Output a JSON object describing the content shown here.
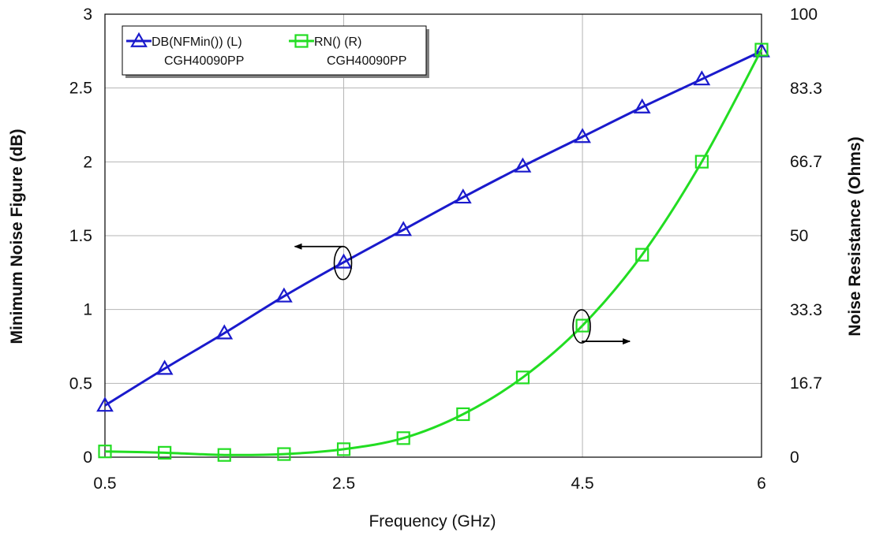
{
  "chart_data": {
    "type": "line",
    "x_label": "Frequency (GHz)",
    "y_left_label": "Minimum Noise Figure (dB)",
    "y_right_label": "Noise Resistance (Ohms)",
    "x_range": [
      0.5,
      6
    ],
    "y_left_range": [
      0,
      3
    ],
    "y_right_range": [
      0,
      100
    ],
    "x_ticks": [
      0.5,
      2.5,
      4.5,
      6
    ],
    "x_tick_labels": [
      "0.5",
      "2.5",
      "4.5",
      "6"
    ],
    "y_left_ticks": [
      0,
      0.5,
      1,
      1.5,
      2,
      2.5,
      3
    ],
    "y_left_tick_labels": [
      "0",
      "0.5",
      "1",
      "1.5",
      "2",
      "2.5",
      "3"
    ],
    "y_right_ticks": [
      0,
      16.7,
      33.3,
      50,
      66.7,
      83.3,
      100
    ],
    "y_right_tick_labels": [
      "0",
      "16.7",
      "33.3",
      "50",
      "66.7",
      "83.3",
      "100"
    ],
    "grid": true,
    "legend_position": "top-left",
    "series": [
      {
        "name": "DB(NFMin()) (L)",
        "subname": "CGH40090PP",
        "axis": "left",
        "marker": "triangle",
        "color": "#1a1acc",
        "x": [
          0.5,
          1.0,
          1.5,
          2.0,
          2.5,
          3.0,
          3.5,
          4.0,
          4.5,
          5.0,
          5.5,
          6.0
        ],
        "y": [
          0.35,
          0.6,
          0.84,
          1.09,
          1.32,
          1.54,
          1.76,
          1.97,
          2.17,
          2.37,
          2.56,
          2.75
        ]
      },
      {
        "name": "RN() (R)",
        "subname": "CGH40090PP",
        "axis": "right",
        "marker": "square",
        "color": "#22dd22",
        "x": [
          0.5,
          1.0,
          1.5,
          2.0,
          2.5,
          3.0,
          3.5,
          4.0,
          4.5,
          5.0,
          5.5,
          6.0
        ],
        "y": [
          1.3,
          1.0,
          0.5,
          0.7,
          1.8,
          4.3,
          9.7,
          18.0,
          29.7,
          45.7,
          66.7,
          92.0
        ]
      }
    ],
    "annotations": [
      {
        "target_series": 0,
        "x": 2.5,
        "y": 1.32,
        "arrow_direction": "left"
      },
      {
        "target_series": 1,
        "x": 4.5,
        "y": 29.7,
        "arrow_direction": "right"
      }
    ]
  }
}
